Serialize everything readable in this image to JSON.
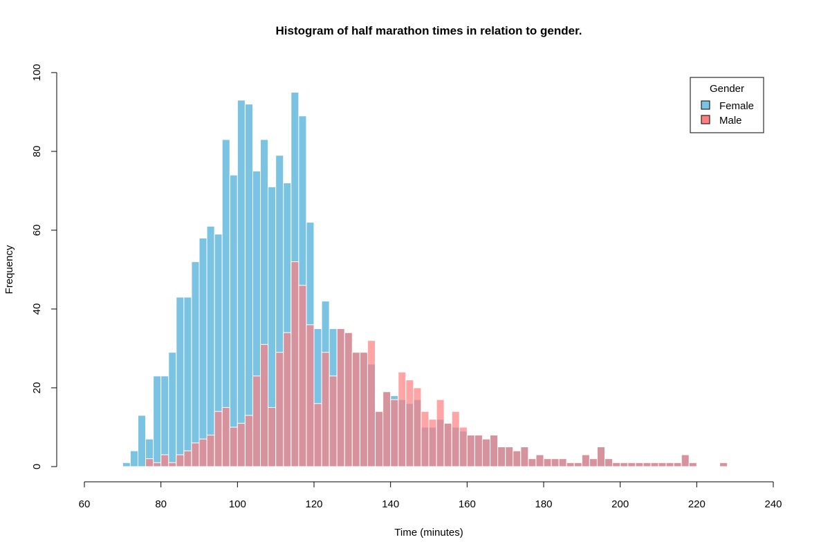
{
  "chart_data": {
    "type": "histogram",
    "title": "Histogram of half marathon times in relation to gender.",
    "xlabel": "Time (minutes)",
    "ylabel": "Frequency",
    "xlim": [
      60,
      240
    ],
    "ylim": [
      0,
      100
    ],
    "x_ticks": [
      "60",
      "80",
      "100",
      "120",
      "140",
      "160",
      "180",
      "200",
      "220",
      "240"
    ],
    "y_ticks": [
      "0",
      "20",
      "40",
      "60",
      "80",
      "100"
    ],
    "bin_width": 2,
    "bin_start": 70,
    "bins": [
      "70-72",
      "72-74",
      "74-76",
      "76-78",
      "78-80",
      "80-82",
      "82-84",
      "84-86",
      "86-88",
      "88-90",
      "90-92",
      "92-94",
      "94-96",
      "96-98",
      "98-100",
      "100-102",
      "102-104",
      "104-106",
      "106-108",
      "108-110",
      "110-112",
      "112-114",
      "114-116",
      "116-118",
      "118-120",
      "120-122",
      "122-124",
      "124-126",
      "126-128",
      "128-130",
      "130-132",
      "132-134",
      "134-136",
      "136-138",
      "138-140",
      "140-142",
      "142-144",
      "144-146",
      "146-148",
      "148-150",
      "150-152",
      "152-154",
      "154-156",
      "156-158",
      "158-160",
      "160-162",
      "162-164",
      "164-166",
      "166-168",
      "168-170",
      "170-172",
      "172-174",
      "174-176",
      "176-178",
      "178-180",
      "180-182",
      "182-184",
      "184-186",
      "186-188",
      "188-190",
      "190-192",
      "192-194",
      "194-196",
      "196-198",
      "198-200",
      "200-202",
      "202-204",
      "204-206",
      "206-208",
      "208-210",
      "210-212",
      "212-214",
      "214-216",
      "216-218",
      "218-220",
      "220-222",
      "222-224",
      "224-226",
      "226-228"
    ],
    "legend_title": "Gender",
    "legend_position": "top-right",
    "grid": false,
    "series": [
      {
        "name": "Female",
        "color": "#7BC3E3",
        "values": [
          1,
          4,
          13,
          7,
          23,
          23,
          29,
          43,
          43,
          52,
          58,
          61,
          59,
          83,
          74,
          93,
          92,
          75,
          83,
          71,
          79,
          72,
          95,
          89,
          62,
          35,
          42,
          35,
          35,
          34,
          29,
          29,
          26,
          14,
          19,
          18,
          17,
          16,
          17,
          10,
          10,
          12,
          11,
          10,
          9,
          8,
          8,
          7,
          8,
          5,
          5,
          4,
          5,
          2,
          3,
          2,
          2,
          2,
          1,
          1,
          3,
          2,
          5,
          2,
          1,
          1,
          1,
          1,
          1,
          1,
          1,
          1,
          1,
          3,
          1,
          0,
          0,
          0,
          1
        ]
      },
      {
        "name": "Male",
        "color": "#FF7F7F",
        "values": [
          0,
          0,
          0,
          2,
          1,
          3,
          1,
          3,
          4,
          6,
          7,
          8,
          14,
          15,
          10,
          11,
          13,
          23,
          31,
          15,
          29,
          34,
          52,
          46,
          36,
          16,
          29,
          23,
          35,
          34,
          29,
          29,
          32,
          14,
          19,
          17,
          24,
          22,
          20,
          14,
          12,
          17,
          11,
          14,
          10,
          8,
          8,
          7,
          8,
          5,
          5,
          4,
          5,
          2,
          3,
          2,
          2,
          2,
          1,
          1,
          3,
          2,
          5,
          2,
          1,
          1,
          1,
          1,
          1,
          1,
          1,
          1,
          1,
          3,
          1,
          0,
          0,
          0,
          1
        ]
      }
    ]
  }
}
